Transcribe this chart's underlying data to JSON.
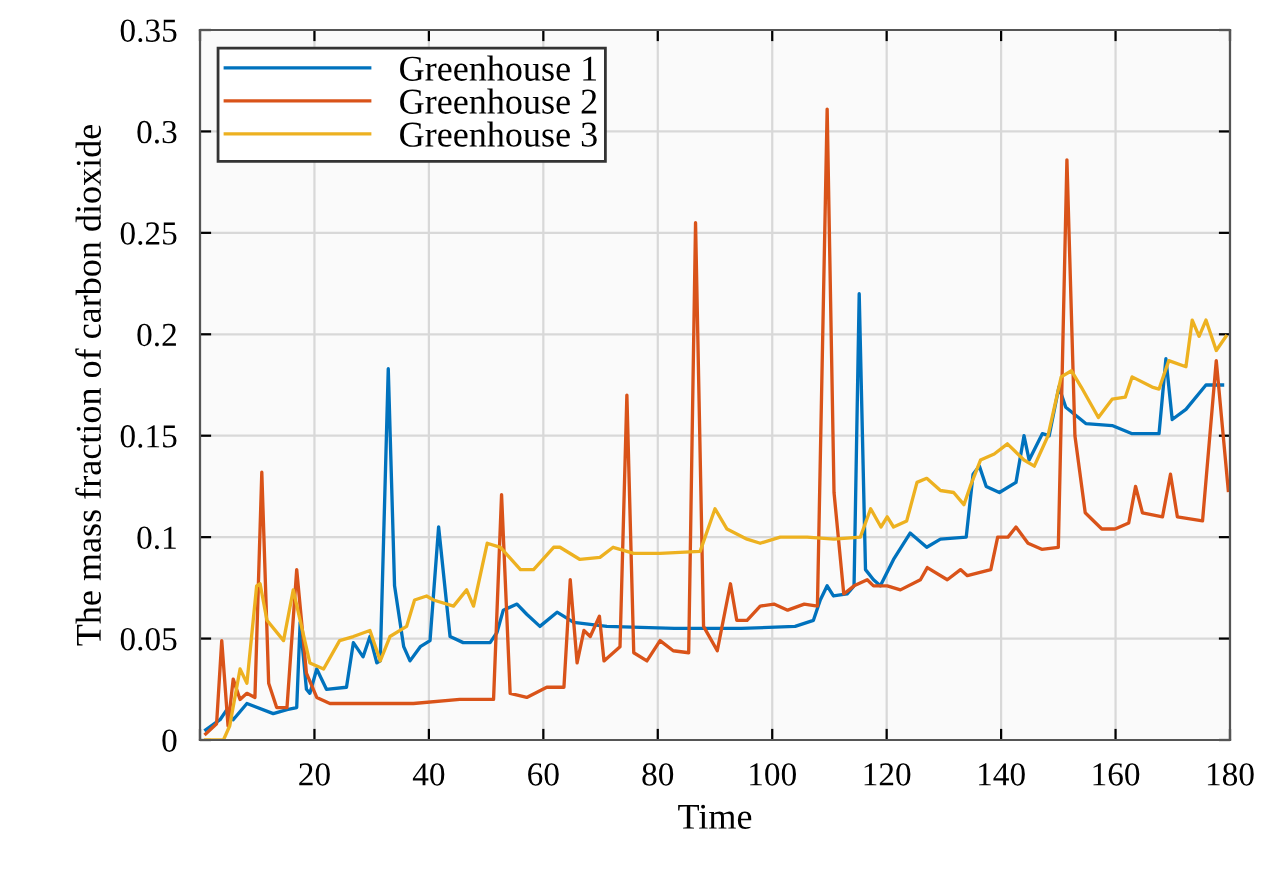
{
  "chart_data": {
    "type": "line",
    "xlabel": "Time",
    "ylabel": "The mass fraction of carbon dioxide",
    "xlim": [
      0,
      180
    ],
    "ylim": [
      0,
      0.35
    ],
    "xticks": [
      {
        "value": 0,
        "label": null
      },
      20,
      40,
      60,
      80,
      100,
      120,
      140,
      160,
      180
    ],
    "yticks": [
      0,
      0.05,
      0.1,
      0.15,
      0.2,
      0.25,
      0.3,
      0.35
    ],
    "grid": true,
    "legend": "top left",
    "series": [
      {
        "name": "Greenhouse 1",
        "color": "#0072bd",
        "x": [
          1,
          3.5,
          4.7,
          5.8,
          8.2,
          12.8,
          15.2,
          16.9,
          17.5,
          18.6,
          19.2,
          20.4,
          22.1,
          25.6,
          26.8,
          28.5,
          29.7,
          30.9,
          31.5,
          32.9,
          34.0,
          35.6,
          36.7,
          38.5,
          40.2,
          41.7,
          43.7,
          46.0,
          50.7,
          51.9,
          53.0,
          55.4,
          57.1,
          59.4,
          62.4,
          65.3,
          71.1,
          82.9,
          94.6,
          104.0,
          107.2,
          108.4,
          109.6,
          110.7,
          113.1,
          114.3,
          115.2,
          116.3,
          117.7,
          118.9,
          121.2,
          124.1,
          127.0,
          129.4,
          133.9,
          135.1,
          136.2,
          137.4,
          139.7,
          142.6,
          144.0,
          144.9,
          147.2,
          148.4,
          150.1,
          151.3,
          154.8,
          159.4,
          162.9,
          167.6,
          168.8,
          169.9,
          172.3,
          175.8,
          178.7
        ],
        "values": [
          0.005,
          0.01,
          0.015,
          0.01,
          0.018,
          0.013,
          0.015,
          0.016,
          0.058,
          0.025,
          0.023,
          0.035,
          0.025,
          0.026,
          0.048,
          0.041,
          0.051,
          0.038,
          0.039,
          0.183,
          0.076,
          0.046,
          0.039,
          0.046,
          0.049,
          0.105,
          0.051,
          0.048,
          0.048,
          0.053,
          0.064,
          0.067,
          0.062,
          0.056,
          0.063,
          0.058,
          0.056,
          0.055,
          0.055,
          0.056,
          0.059,
          0.069,
          0.076,
          0.071,
          0.072,
          0.076,
          0.22,
          0.084,
          0.079,
          0.076,
          0.089,
          0.102,
          0.095,
          0.099,
          0.1,
          0.131,
          0.135,
          0.125,
          0.122,
          0.127,
          0.15,
          0.138,
          0.151,
          0.15,
          0.174,
          0.164,
          0.156,
          0.155,
          0.151,
          0.151,
          0.188,
          0.158,
          0.163,
          0.175,
          0.175
        ]
      },
      {
        "name": "Greenhouse 2",
        "color": "#d95319",
        "x": [
          1,
          2.9,
          3.8,
          4.9,
          5.8,
          7.0,
          8.2,
          9.6,
          10.8,
          12.0,
          13.4,
          15.2,
          16.9,
          18.6,
          20.4,
          22.7,
          25.6,
          31.5,
          37.3,
          45.4,
          51.3,
          52.7,
          54.2,
          57.1,
          60.6,
          63.6,
          64.7,
          65.9,
          67.1,
          68.2,
          69.8,
          70.6,
          73.4,
          74.6,
          75.8,
          78.1,
          80.4,
          82.7,
          85.4,
          86.6,
          88.0,
          90.4,
          92.7,
          93.8,
          95.6,
          97.9,
          100.3,
          102.7,
          105.6,
          107.9,
          109.6,
          110.8,
          112.5,
          114.3,
          116.6,
          117.7,
          120.1,
          122.4,
          125.9,
          127.1,
          130.6,
          132.9,
          134.1,
          138.2,
          139.4,
          141.2,
          142.6,
          144.7,
          147.1,
          150.0,
          151.5,
          152.9,
          154.7,
          157.6,
          159.9,
          162.3,
          163.5,
          164.7,
          168.2,
          169.6,
          170.8,
          175.2,
          177.6,
          179.7
        ],
        "values": [
          0.003,
          0.008,
          0.049,
          0.007,
          0.03,
          0.02,
          0.023,
          0.021,
          0.132,
          0.028,
          0.016,
          0.016,
          0.084,
          0.033,
          0.021,
          0.018,
          0.018,
          0.018,
          0.018,
          0.02,
          0.02,
          0.121,
          0.023,
          0.021,
          0.026,
          0.026,
          0.079,
          0.038,
          0.054,
          0.051,
          0.061,
          0.039,
          0.046,
          0.17,
          0.043,
          0.039,
          0.049,
          0.044,
          0.043,
          0.255,
          0.056,
          0.044,
          0.077,
          0.059,
          0.059,
          0.066,
          0.067,
          0.064,
          0.067,
          0.066,
          0.311,
          0.122,
          0.072,
          0.076,
          0.079,
          0.076,
          0.076,
          0.074,
          0.079,
          0.085,
          0.079,
          0.084,
          0.081,
          0.084,
          0.1,
          0.1,
          0.105,
          0.097,
          0.094,
          0.095,
          0.286,
          0.15,
          0.112,
          0.104,
          0.104,
          0.107,
          0.125,
          0.112,
          0.11,
          0.131,
          0.11,
          0.108,
          0.187,
          0.123
        ]
      },
      {
        "name": "Greenhouse 3",
        "color": "#edb120",
        "x": [
          1,
          4.1,
          5.2,
          7.0,
          8.2,
          9.9,
          10.5,
          11.7,
          14.6,
          16.3,
          17.5,
          19.2,
          21.6,
          24.4,
          26.8,
          29.7,
          31.5,
          33.2,
          36.1,
          37.5,
          39.6,
          40.8,
          44.3,
          46.6,
          47.8,
          50.2,
          52.5,
          56.0,
          58.3,
          61.8,
          62.9,
          66.4,
          69.9,
          72.2,
          75.8,
          80.4,
          87.4,
          90.0,
          92.1,
          95.6,
          97.9,
          101.4,
          106.1,
          110.8,
          115.4,
          117.2,
          119.0,
          120.1,
          121.2,
          123.5,
          125.3,
          127.0,
          129.4,
          131.7,
          133.5,
          134.6,
          136.4,
          138.8,
          141.1,
          144.0,
          145.8,
          148.2,
          150.5,
          152.3,
          154.0,
          157.0,
          159.4,
          161.7,
          162.9,
          166.4,
          167.6,
          169.3,
          172.3,
          173.4,
          174.6,
          175.8,
          177.6,
          179.3
        ],
        "values": [
          0,
          0,
          0.007,
          0.035,
          0.028,
          0.076,
          0.077,
          0.059,
          0.049,
          0.074,
          0.059,
          0.038,
          0.035,
          0.049,
          0.051,
          0.054,
          0.039,
          0.051,
          0.056,
          0.069,
          0.071,
          0.069,
          0.066,
          0.074,
          0.066,
          0.097,
          0.095,
          0.084,
          0.084,
          0.095,
          0.095,
          0.089,
          0.09,
          0.095,
          0.092,
          0.092,
          0.093,
          0.114,
          0.104,
          0.099,
          0.097,
          0.1,
          0.1,
          0.099,
          0.1,
          0.114,
          0.105,
          0.11,
          0.105,
          0.108,
          0.127,
          0.129,
          0.123,
          0.122,
          0.116,
          0.125,
          0.138,
          0.141,
          0.146,
          0.138,
          0.135,
          0.15,
          0.179,
          0.182,
          0.174,
          0.159,
          0.168,
          0.169,
          0.179,
          0.174,
          0.173,
          0.187,
          0.184,
          0.207,
          0.199,
          0.207,
          0.192,
          0.199
        ]
      }
    ]
  }
}
